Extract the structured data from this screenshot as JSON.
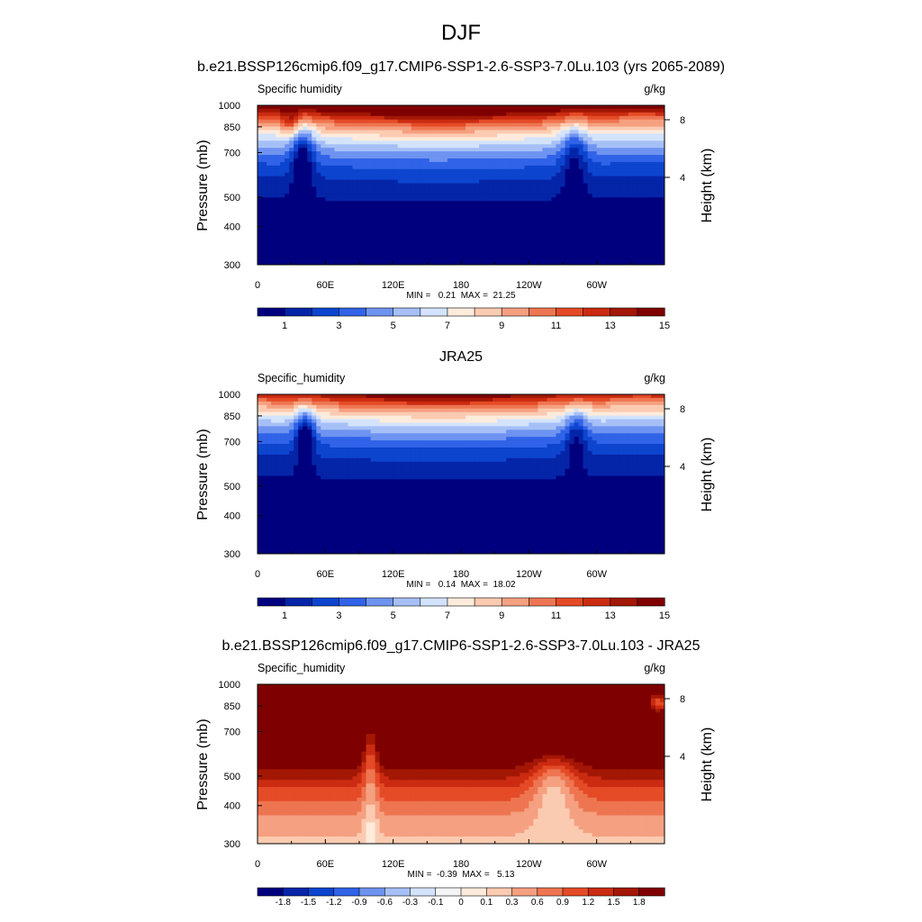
{
  "figure": {
    "season": "DJF",
    "ylabel_left": "Pressure (mb)",
    "ylabel_right": "Height (km)",
    "pressure_ticks": [
      300,
      400,
      500,
      700,
      850,
      1000
    ],
    "height_ticks": [
      "8",
      "4"
    ],
    "lon_ticks": [
      "0",
      "60E",
      "120E",
      "180",
      "120W",
      "60W"
    ]
  },
  "chart_data": [
    {
      "type": "heatmap",
      "title": "b.e21.BSSP126cmip6.f09_g17.CMIP6-SSP1-2.6-SSP3-7.0Lu.103 (yrs 2065-2089)",
      "variable": "Specific humidity",
      "units": "g/kg",
      "stats": "MIN =   0.21  MAX =  21.25",
      "min": 0.21,
      "max": 21.25,
      "ylim": [
        1000,
        300
      ],
      "xlim": [
        0,
        360
      ],
      "colorbar": {
        "labels": [
          "1",
          "3",
          "5",
          "7",
          "9",
          "11",
          "13",
          "15"
        ],
        "colors": [
          "#00007f",
          "#0525a8",
          "#0d45cf",
          "#3063e8",
          "#6e93f0",
          "#a6c0f7",
          "#d3e3fc",
          "#fdebdc",
          "#fbcbb1",
          "#f5a080",
          "#ee7551",
          "#e44b26",
          "#cb2b11",
          "#a31705",
          "#7f0000"
        ]
      },
      "mask_pressure_regions": [
        "0-45E",
        "98-102E",
        "107-112E",
        "295-313E"
      ]
    },
    {
      "type": "heatmap",
      "title": "JRA25",
      "variable": "Specific_humidity",
      "units": "g/kg",
      "stats": "MIN =   0.14  MAX =  18.02",
      "min": 0.14,
      "max": 18.02,
      "ylim": [
        1000,
        300
      ],
      "xlim": [
        0,
        360
      ],
      "colorbar": {
        "labels": [
          "1",
          "3",
          "5",
          "7",
          "9",
          "11",
          "13",
          "15"
        ],
        "colors": [
          "#00007f",
          "#0525a8",
          "#0d45cf",
          "#3063e8",
          "#6e93f0",
          "#a6c0f7",
          "#d3e3fc",
          "#fdebdc",
          "#fbcbb1",
          "#f5a080",
          "#ee7551",
          "#e44b26",
          "#cb2b11",
          "#a31705",
          "#7f0000"
        ]
      }
    },
    {
      "type": "heatmap",
      "title": "b.e21.BSSP126cmip6.f09_g17.CMIP6-SSP1-2.6-SSP3-7.0Lu.103 - JRA25",
      "variable": "Specific_humidity",
      "units": "g/kg",
      "stats": "MIN =  -0.39  MAX =   5.13",
      "min": -0.39,
      "max": 5.13,
      "ylim": [
        1000,
        300
      ],
      "xlim": [
        0,
        360
      ],
      "colorbar": {
        "labels": [
          "-1.8",
          "-1.5",
          "-1.2",
          "-0.9",
          "-0.6",
          "-0.3",
          "-0.1",
          "0",
          "0.1",
          "0.3",
          "0.6",
          "0.9",
          "1.2",
          "1.5",
          "1.8"
        ],
        "colors": [
          "#00007f",
          "#0525a8",
          "#0d45cf",
          "#3063e8",
          "#6e93f0",
          "#a6c0f7",
          "#d3e3fc",
          "#f4f4f4",
          "#fdebdc",
          "#fbcbb1",
          "#f5a080",
          "#ee7551",
          "#e44b26",
          "#cb2b11",
          "#a31705",
          "#7f0000"
        ]
      }
    }
  ]
}
